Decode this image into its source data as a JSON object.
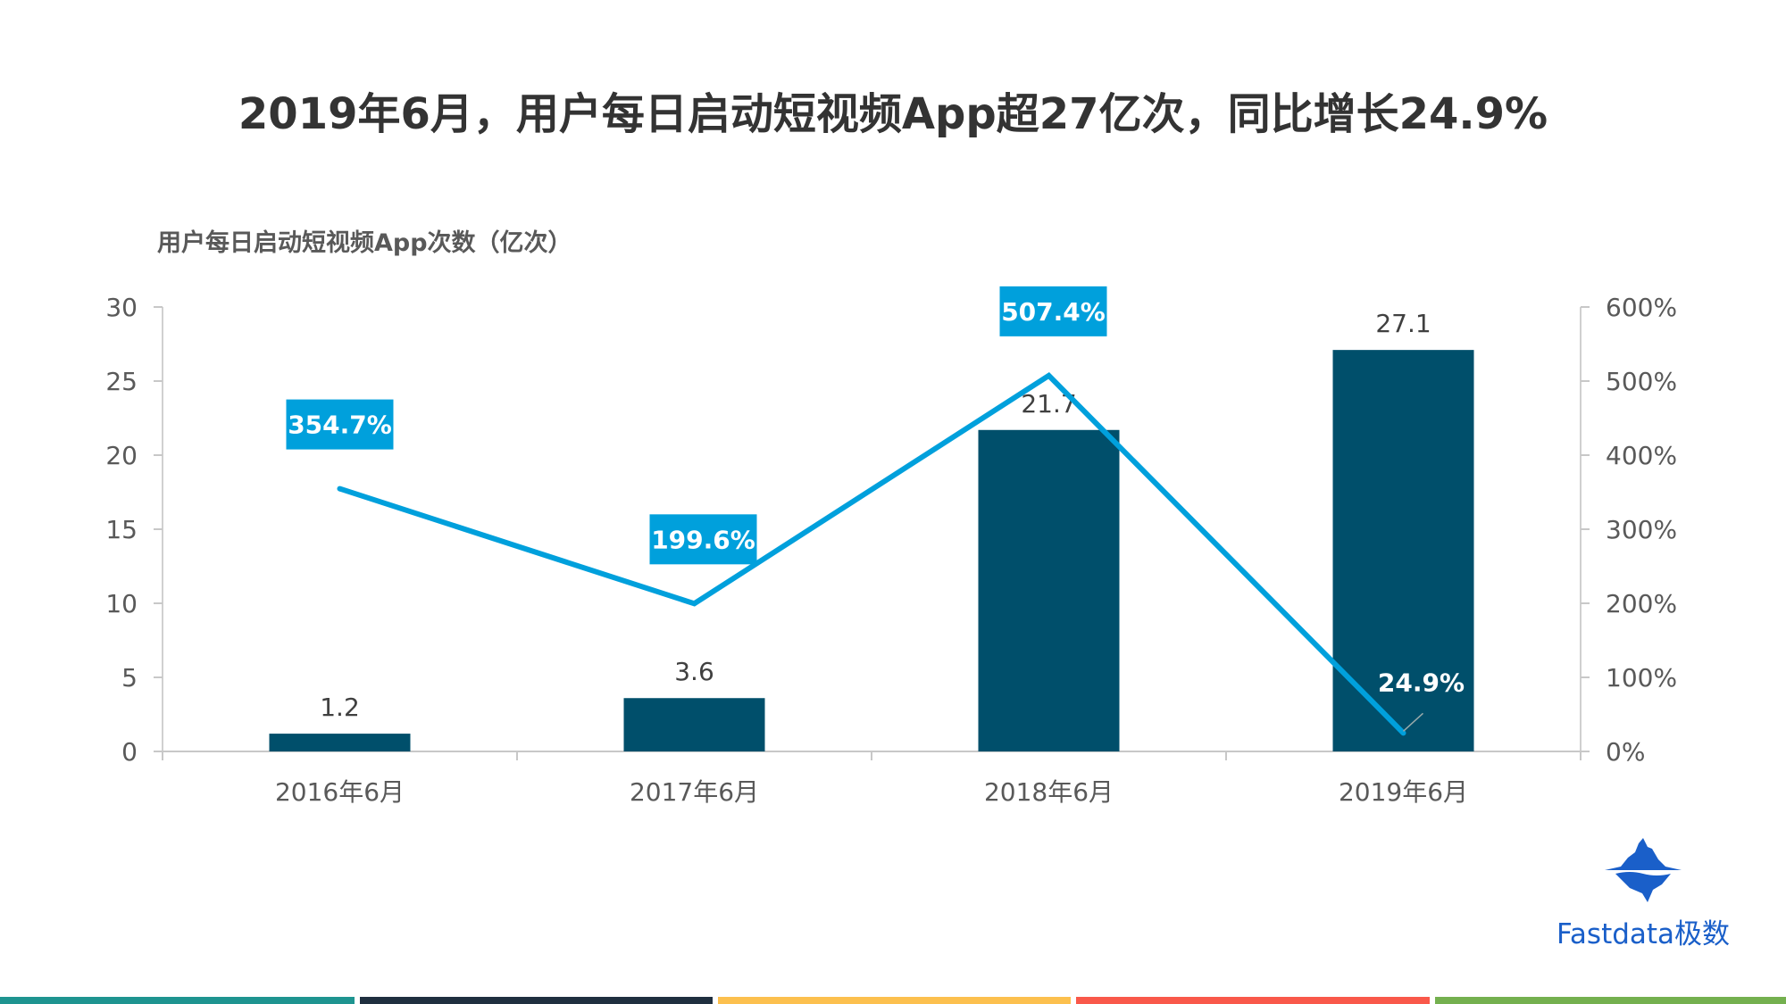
{
  "title": "2019年6月，用户每日启动短视频App超27亿次，同比增长24.9%",
  "chart_data": {
    "type": "bar+line",
    "ylabel": "用户每日启动短视频App次数（亿次）",
    "categories": [
      "2016年6月",
      "2017年6月",
      "2018年6月",
      "2019年6月"
    ],
    "series": [
      {
        "type": "bar",
        "axis": "left",
        "values": [
          1.2,
          3.6,
          21.7,
          27.1
        ],
        "labels": [
          "1.2",
          "3.6",
          "21.7",
          "27.1"
        ],
        "color": "#004f6b"
      },
      {
        "type": "line",
        "axis": "right",
        "values": [
          354.7,
          199.6,
          507.4,
          24.9
        ],
        "labels": [
          "354.7%",
          "199.6%",
          "507.4%",
          "24.9%"
        ],
        "color": "#00a0dc"
      }
    ],
    "ylim_left": [
      0,
      30
    ],
    "yticks_left": [
      "0",
      "5",
      "10",
      "15",
      "20",
      "25",
      "30"
    ],
    "ylim_right": [
      0,
      600
    ],
    "yticks_right": [
      "0%",
      "100%",
      "200%",
      "300%",
      "400%",
      "500%",
      "600%"
    ],
    "grid": false
  },
  "logo": {
    "text": "Fastdata极数",
    "color": "#1a5fc9"
  },
  "stripes": [
    "#1e9490",
    "#1f2f3f",
    "#fcc04e",
    "#f9584a",
    "#74b04f"
  ]
}
